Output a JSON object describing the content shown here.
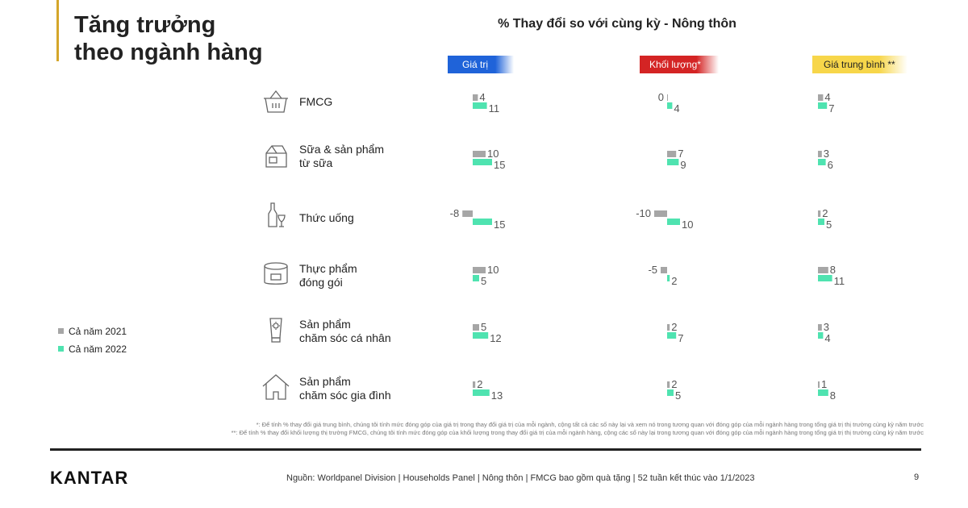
{
  "header": {
    "title_line1": "Tăng trưởng",
    "title_line2": "theo ngành hàng",
    "accent_color": "#d4a62a"
  },
  "chart_data": {
    "type": "bar",
    "title": "% Thay đổi so với cùng kỳ - Nông thôn",
    "categories": [
      "FMCG",
      "Sữa & sản phẩm từ sữa",
      "Thức uống",
      "Thực phẩm đóng gói",
      "Sản phẩm chăm sóc cá nhân",
      "Sản phẩm chăm sóc gia đình"
    ],
    "category_lines": [
      [
        "FMCG"
      ],
      [
        "Sữa & sản phẩm",
        "từ sữa"
      ],
      [
        "Thức uống"
      ],
      [
        "Thực phẩm",
        "đóng gói"
      ],
      [
        "Sản phẩm",
        "chăm sóc cá nhân"
      ],
      [
        "Sản phẩm",
        "chăm sóc gia đình"
      ]
    ],
    "category_icons": [
      "basket-icon",
      "milk-carton-icon",
      "bottle-glass-icon",
      "package-icon",
      "lotion-tube-icon",
      "house-icon"
    ],
    "panels": [
      {
        "name": "Giá trị",
        "color": "#1f63d9",
        "series": [
          {
            "name": "Cả năm 2021",
            "values": [
              4,
              10,
              -8,
              10,
              5,
              2
            ]
          },
          {
            "name": "Cả năm 2022",
            "values": [
              11,
              15,
              15,
              5,
              12,
              13
            ]
          }
        ]
      },
      {
        "name": "Khối lượng*",
        "color": "#d42424",
        "series": [
          {
            "name": "Cả năm 2021",
            "values": [
              0,
              7,
              -10,
              -5,
              2,
              2
            ]
          },
          {
            "name": "Cả năm 2022",
            "values": [
              4,
              9,
              10,
              2,
              7,
              5
            ]
          }
        ]
      },
      {
        "name": "Giá trung bình **",
        "color": "#f7d64a",
        "series": [
          {
            "name": "Cả năm 2021",
            "values": [
              4,
              3,
              2,
              8,
              3,
              1
            ]
          },
          {
            "name": "Cả năm 2022",
            "values": [
              7,
              6,
              5,
              11,
              4,
              8
            ]
          }
        ]
      }
    ],
    "series_colors": {
      "2021": "#a6a6a6",
      "2022": "#4fe3b0"
    },
    "legend_position": "left"
  },
  "legend": {
    "item_2021": "Cả năm 2021",
    "item_2022": "Cả năm 2022"
  },
  "footnotes": {
    "line1": "*: Để tính % thay đổi giá trung bình, chúng tôi tính mức đóng góp của giá trị trong thay đổi giá trị của mỗi ngành, cộng tất cả các số này lại và xem nó trong tương quan với đóng góp của mỗi ngành hàng trong tổng giá trị thị trường cùng kỳ năm trước",
    "line2": "**: Để tính % thay đổi khối lượng thị trường FMCG, chúng tôi tính mức đóng góp của khối lượng trong thay đổi giá trị của mỗi ngành hàng, cộng các số này lại trong tương quan với đóng góp của mỗi ngành hàng trong tổng giá trị thị trường cùng kỳ năm trước"
  },
  "footer": {
    "logo": "KANTAR",
    "source": "Nguồn: Worldpanel Division | Households Panel | Nông thôn | FMCG bao gồm quà tặng | 52 tuần kết thúc vào 1/1/2023",
    "page_number": "9"
  }
}
